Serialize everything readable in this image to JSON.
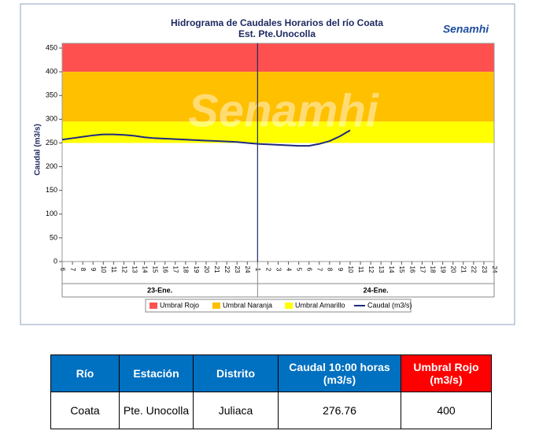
{
  "chart_data": {
    "type": "line",
    "title": "Hidrograma de Caudales Horarios del río Coata",
    "subtitle": "Est. Pte.Unocolla",
    "y_label": "Caudal  (m3/s)",
    "watermark": "Senamhi",
    "logo": "Senamhi",
    "categories": [
      "6",
      "7",
      "8",
      "9",
      "10",
      "11",
      "12",
      "13",
      "14",
      "15",
      "16",
      "17",
      "18",
      "19",
      "20",
      "21",
      "22",
      "23",
      "24",
      "1",
      "2",
      "3",
      "4",
      "5",
      "6",
      "7",
      "8",
      "9",
      "10",
      "11",
      "12",
      "13",
      "14",
      "15",
      "16",
      "17",
      "18",
      "19",
      "20",
      "21",
      "22",
      "23",
      "24"
    ],
    "day_labels": [
      "23-Ene.",
      "24-Ene."
    ],
    "bands": [
      {
        "name": "Umbral Rojo",
        "color": "#ff5050",
        "from": 400,
        "to": 460
      },
      {
        "name": "Umbral Naranja",
        "color": "#ffc000",
        "from": 295,
        "to": 400
      },
      {
        "name": "Umbral Amarillo",
        "color": "#ffff00",
        "from": 250,
        "to": 295
      }
    ],
    "series": [
      {
        "name": "Caudal (m3/s)",
        "color": "#1f2a80",
        "values": [
          257,
          260,
          263,
          266,
          268,
          268,
          267,
          265,
          262,
          260,
          259,
          258,
          257,
          256,
          255,
          254,
          253,
          252,
          250,
          248,
          247,
          246,
          245,
          244,
          244,
          248,
          254,
          264,
          276.76,
          null,
          null,
          null,
          null,
          null,
          null,
          null,
          null,
          null,
          null,
          null,
          null,
          null,
          null
        ]
      }
    ],
    "ylim": [
      0,
      460
    ],
    "yticks": [
      0,
      50,
      100,
      150,
      200,
      250,
      300,
      350,
      400,
      450
    ]
  },
  "table": {
    "header": [
      "Río",
      "Estación",
      "Distrito",
      "Caudal  10:00 horas (m3/s)",
      "Umbral Rojo (m3/s)"
    ],
    "rows": [
      [
        "Coata",
        "Pte. Unocolla",
        "Juliaca",
        "276.76",
        "400"
      ]
    ]
  }
}
